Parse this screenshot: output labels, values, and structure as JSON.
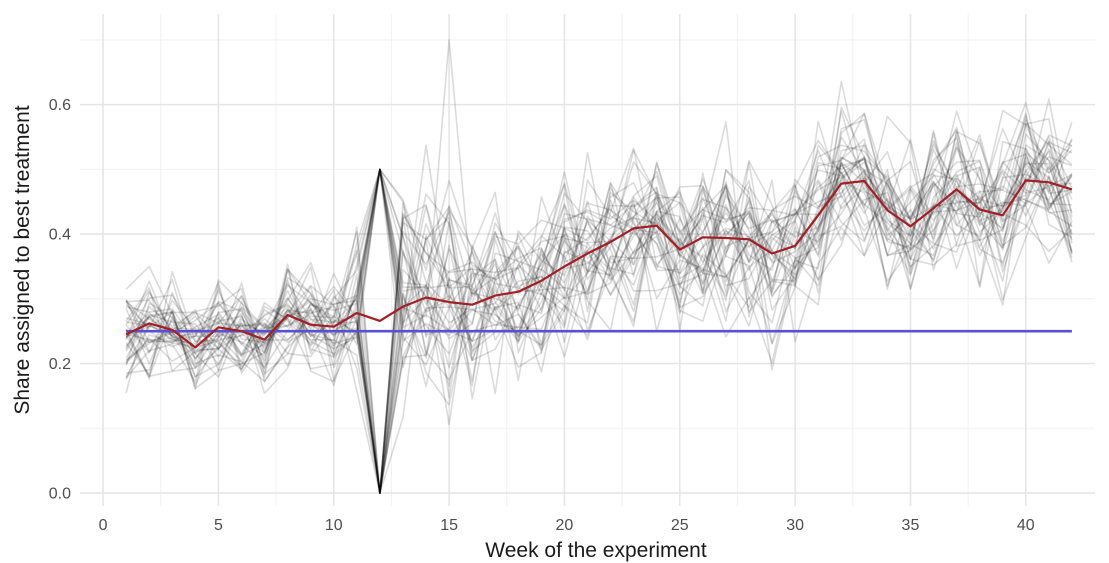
{
  "chart_data": {
    "type": "line",
    "xlabel": "Week of the experiment",
    "ylabel": "Share assigned to best treatment",
    "xlim": [
      -1,
      43
    ],
    "ylim": [
      -0.02,
      0.74
    ],
    "x_ticks": [
      0,
      5,
      10,
      15,
      20,
      25,
      30,
      35,
      40
    ],
    "y_ticks": [
      0.0,
      0.2,
      0.4,
      0.6
    ],
    "grid": true,
    "colors": {
      "mean": "#a31f24",
      "reference": "#5b4fd6",
      "runs": "#000000"
    },
    "simulation_runs": 40,
    "series": [
      {
        "role": "mean",
        "x": [
          1,
          2,
          3,
          4,
          5,
          6,
          7,
          8,
          9,
          10,
          11,
          12,
          13,
          14,
          15,
          16,
          17,
          18,
          19,
          20,
          21,
          22,
          23,
          24,
          25,
          26,
          27,
          28,
          29,
          30,
          31,
          32,
          33,
          34,
          35,
          36,
          37,
          38,
          39,
          40,
          41,
          42
        ],
        "values": [
          0.245,
          0.262,
          0.252,
          0.225,
          0.256,
          0.25,
          0.237,
          0.275,
          0.26,
          0.257,
          0.278,
          0.266,
          0.288,
          0.302,
          0.295,
          0.291,
          0.305,
          0.311,
          0.328,
          0.35,
          0.37,
          0.388,
          0.409,
          0.413,
          0.376,
          0.395,
          0.394,
          0.392,
          0.37,
          0.382,
          0.429,
          0.478,
          0.482,
          0.437,
          0.412,
          0.44,
          0.469,
          0.438,
          0.429,
          0.483,
          0.48,
          0.469
        ]
      },
      {
        "role": "reference",
        "x": [
          1,
          42
        ],
        "values": [
          0.25,
          0.25
        ]
      }
    ]
  }
}
